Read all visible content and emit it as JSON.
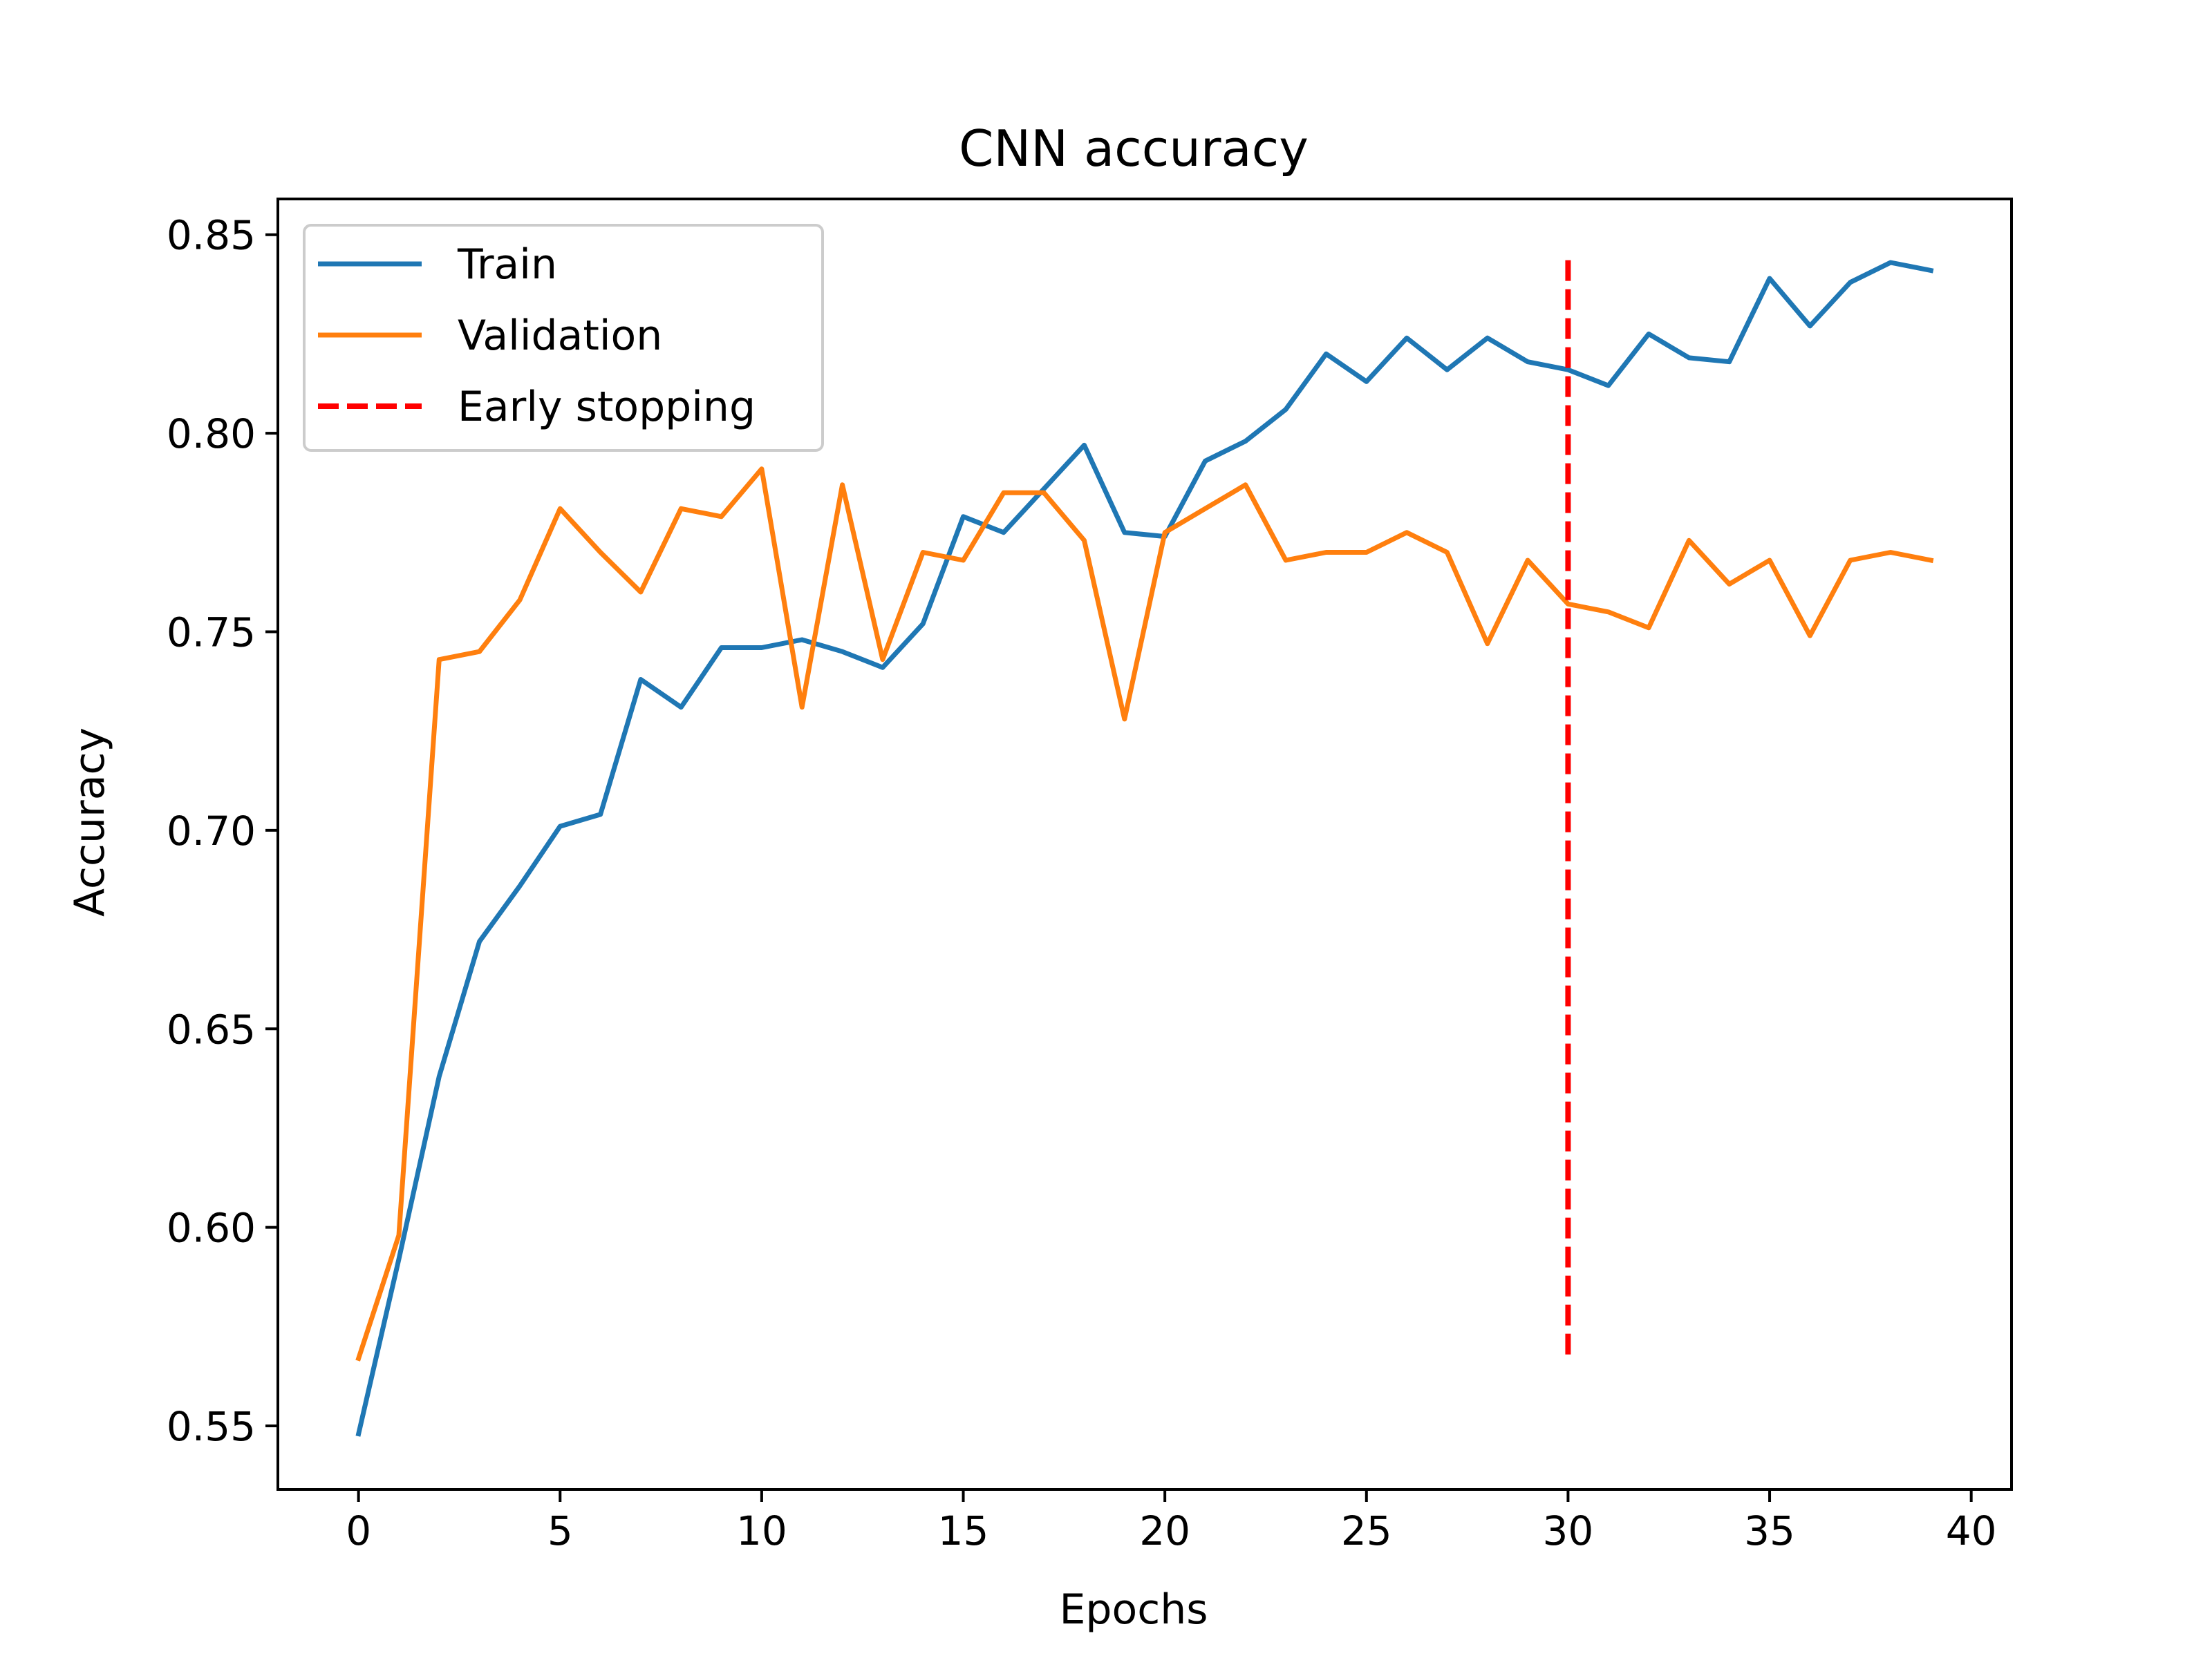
{
  "chart_data": {
    "type": "line",
    "title": "CNN accuracy",
    "xlabel": "Epochs",
    "ylabel": "Accuracy",
    "xlim": [
      -2,
      41
    ],
    "ylim": [
      0.534,
      0.859
    ],
    "xticks": [
      0,
      5,
      10,
      15,
      20,
      25,
      30,
      35,
      40
    ],
    "xtick_labels": [
      "0",
      "5",
      "10",
      "15",
      "20",
      "25",
      "30",
      "35",
      "40"
    ],
    "yticks": [
      0.55,
      0.6,
      0.65,
      0.7,
      0.75,
      0.8,
      0.85
    ],
    "ytick_labels": [
      "0.55",
      "0.60",
      "0.65",
      "0.70",
      "0.75",
      "0.80",
      "0.85"
    ],
    "grid": false,
    "legend_position": "top-left",
    "x": [
      0,
      1,
      2,
      3,
      4,
      5,
      6,
      7,
      8,
      9,
      10,
      11,
      12,
      13,
      14,
      15,
      16,
      17,
      18,
      19,
      20,
      21,
      22,
      23,
      24,
      25,
      26,
      27,
      28,
      29,
      30,
      31,
      32,
      33,
      34,
      35,
      36,
      37,
      38,
      39
    ],
    "series": [
      {
        "name": "Train",
        "color": "#1f77b4",
        "style": "solid",
        "values": [
          0.548,
          0.592,
          0.638,
          0.672,
          0.686,
          0.701,
          0.704,
          0.738,
          0.731,
          0.746,
          0.746,
          0.748,
          0.745,
          0.741,
          0.752,
          0.779,
          0.775,
          0.786,
          0.797,
          0.775,
          0.774,
          0.793,
          0.798,
          0.806,
          0.82,
          0.813,
          0.824,
          0.816,
          0.824,
          0.818,
          0.816,
          0.812,
          0.825,
          0.819,
          0.818,
          0.839,
          0.827,
          0.838,
          0.843,
          0.841
        ]
      },
      {
        "name": "Validation",
        "color": "#ff7f0e",
        "style": "solid",
        "values": [
          0.567,
          0.598,
          0.743,
          0.745,
          0.758,
          0.781,
          0.77,
          0.76,
          0.781,
          0.779,
          0.791,
          0.731,
          0.787,
          0.743,
          0.77,
          0.768,
          0.785,
          0.785,
          0.773,
          0.728,
          0.775,
          0.781,
          0.787,
          0.768,
          0.77,
          0.77,
          0.775,
          0.77,
          0.747,
          0.768,
          0.757,
          0.755,
          0.751,
          0.773,
          0.762,
          0.768,
          0.749,
          0.768,
          0.77,
          0.768
        ]
      }
    ],
    "annotations": [
      {
        "name": "Early stopping",
        "type": "vline",
        "x": 30,
        "y_range": [
          0.568,
          0.844
        ],
        "color": "#ff0000",
        "style": "dashed"
      }
    ]
  }
}
